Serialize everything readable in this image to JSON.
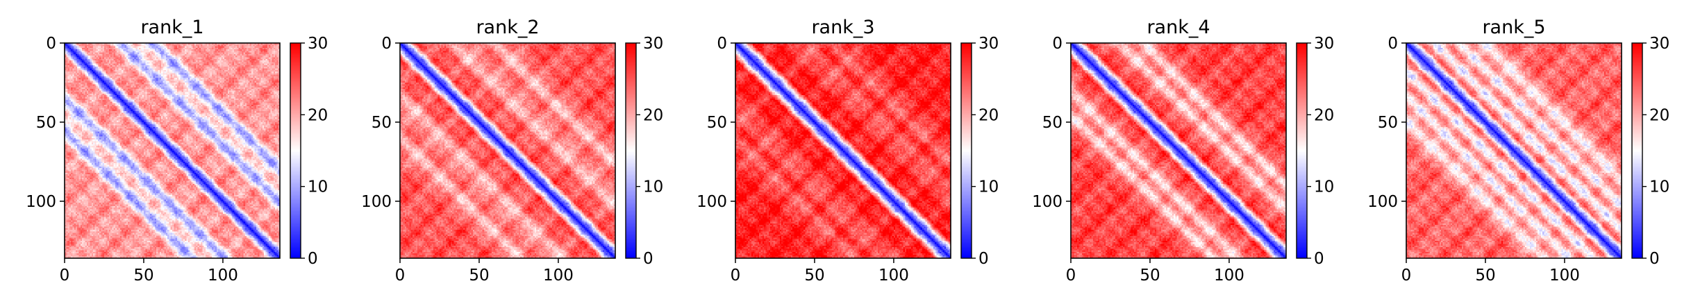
{
  "chart_data": {
    "type": "heatmap",
    "description_note": "",
    "colormap": {
      "name": "bwr",
      "stops": [
        "#0000ff",
        "#ffffff",
        "#ff0000"
      ],
      "range": [
        0,
        30
      ],
      "ticks": [
        0,
        10,
        20,
        30
      ],
      "tick_labels": [
        "0",
        "10",
        "20",
        "30"
      ]
    },
    "axes": {
      "matrix_size": 136,
      "xlim": [
        0,
        136
      ],
      "ylim": [
        136,
        0
      ],
      "xticks": [
        0,
        50,
        100
      ],
      "yticks": [
        0,
        50,
        100
      ],
      "xtick_labels": [
        "0",
        "50",
        "100"
      ],
      "ytick_labels": [
        "0",
        "50",
        "100"
      ]
    },
    "panels": [
      {
        "title": "rank_1",
        "base_level": 21,
        "stripe_offsets": [
          36,
          55
        ],
        "stripe_depth": 12,
        "stripe_width": 4
      },
      {
        "title": "rank_2",
        "base_level": 25,
        "stripe_offsets": [
          35,
          60
        ],
        "stripe_depth": 6,
        "stripe_width": 6
      },
      {
        "title": "rank_3",
        "base_level": 28,
        "stripe_offsets": [
          40,
          62
        ],
        "stripe_depth": 4,
        "stripe_width": 6
      },
      {
        "title": "rank_4",
        "base_level": 26,
        "stripe_offsets": [
          30,
          46
        ],
        "stripe_depth": 8,
        "stripe_width": 5
      },
      {
        "title": "rank_5",
        "base_level": 24,
        "stripe_offsets": [
          18,
          34,
          50
        ],
        "stripe_depth": 9,
        "stripe_width": 4
      }
    ]
  }
}
